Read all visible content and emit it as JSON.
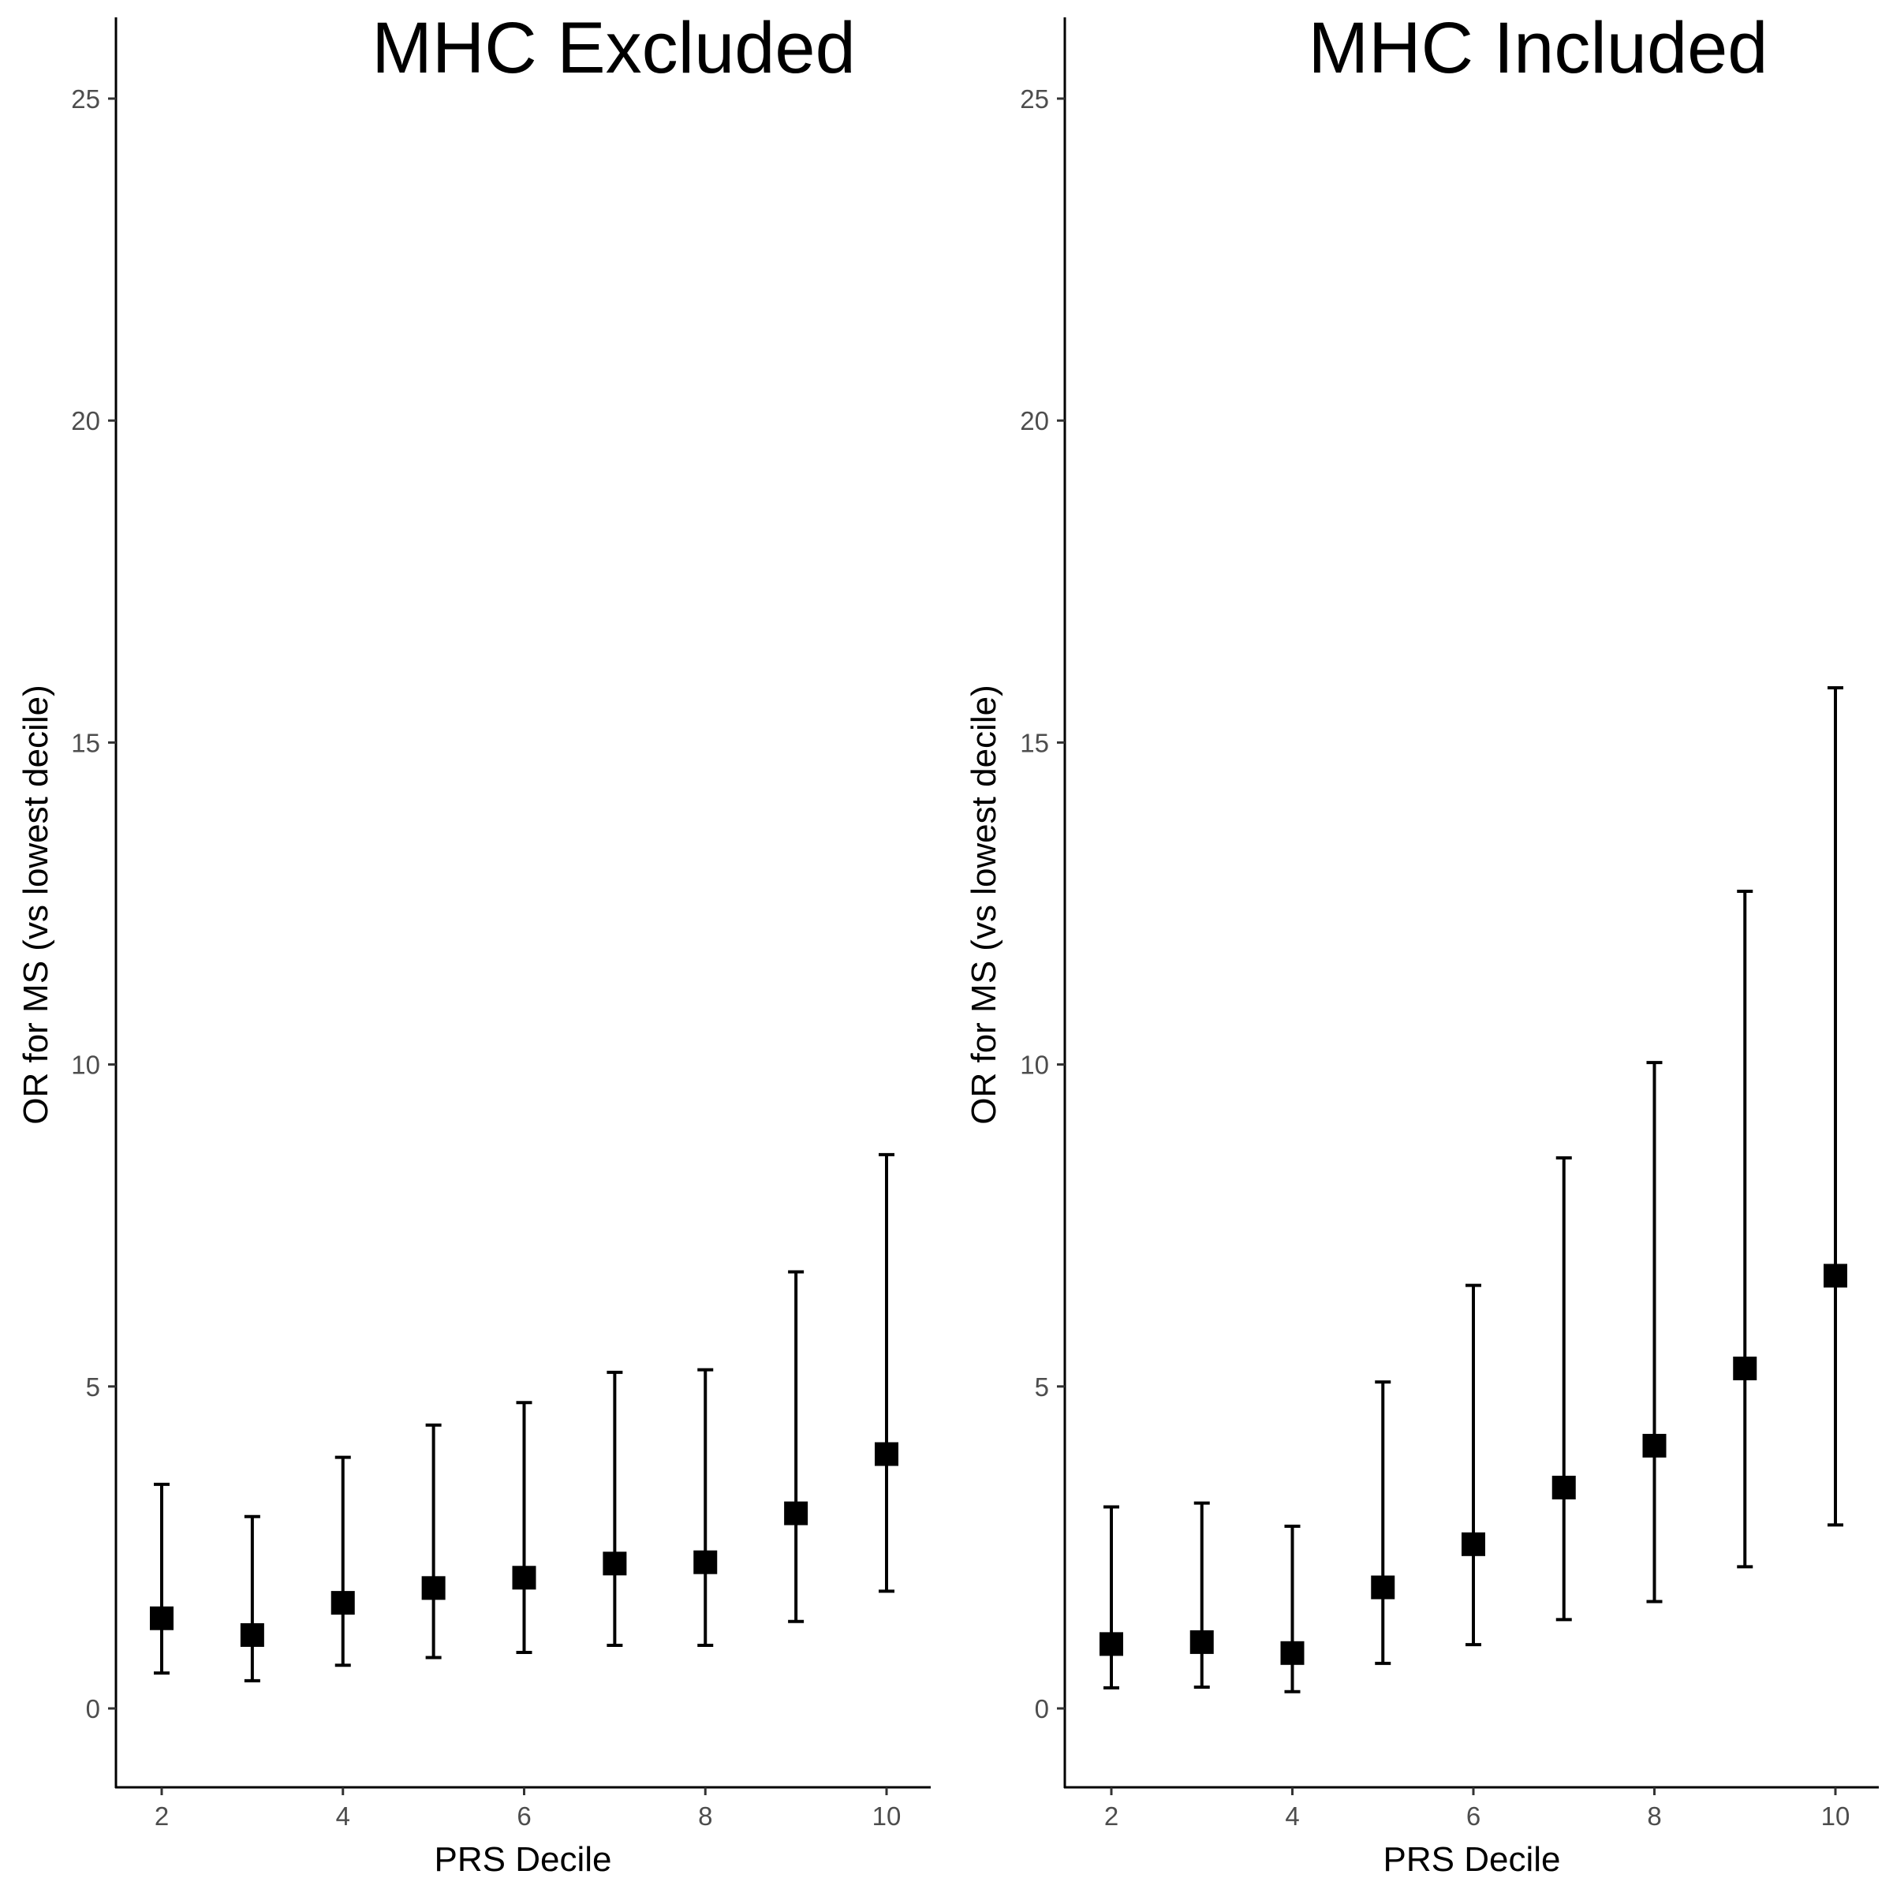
{
  "figure": {
    "background": "#ffffff",
    "point_color": "#000000",
    "errorbar_color": "#000000",
    "axis_color": "#000000"
  },
  "chart_data": [
    {
      "type": "scatter",
      "title": "MHC Excluded",
      "xlabel": "PRS Decile",
      "ylabel": "OR for MS (vs lowest decile)",
      "xlim": [
        1.5,
        10.5
      ],
      "ylim": [
        -1.2,
        26.2
      ],
      "x_ticks": [
        2,
        4,
        6,
        8,
        10
      ],
      "y_ticks": [
        0,
        5,
        10,
        15,
        20,
        25
      ],
      "grid": false,
      "marker": "square",
      "points": [
        {
          "x": 2,
          "y": 1.4,
          "lower": 0.55,
          "upper": 3.48
        },
        {
          "x": 3,
          "y": 1.14,
          "lower": 0.43,
          "upper": 2.98
        },
        {
          "x": 4,
          "y": 1.64,
          "lower": 0.67,
          "upper": 3.9
        },
        {
          "x": 5,
          "y": 1.87,
          "lower": 0.79,
          "upper": 4.4
        },
        {
          "x": 6,
          "y": 2.03,
          "lower": 0.87,
          "upper": 4.75
        },
        {
          "x": 7,
          "y": 2.25,
          "lower": 0.98,
          "upper": 5.22
        },
        {
          "x": 8,
          "y": 2.27,
          "lower": 0.98,
          "upper": 5.26
        },
        {
          "x": 9,
          "y": 3.03,
          "lower": 1.35,
          "upper": 6.78
        },
        {
          "x": 10,
          "y": 3.95,
          "lower": 1.82,
          "upper": 8.6
        }
      ]
    },
    {
      "type": "scatter",
      "title": "MHC Included",
      "xlabel": "PRS Decile",
      "ylabel": "OR for MS (vs lowest decile)",
      "xlim": [
        1.5,
        10.5
      ],
      "ylim": [
        -1.2,
        26.2
      ],
      "x_ticks": [
        2,
        4,
        6,
        8,
        10
      ],
      "y_ticks": [
        0,
        5,
        10,
        15,
        20,
        25
      ],
      "grid": false,
      "marker": "square",
      "points": [
        {
          "x": 2,
          "y": 1.0,
          "lower": 0.32,
          "upper": 3.13
        },
        {
          "x": 3,
          "y": 1.03,
          "lower": 0.33,
          "upper": 3.19
        },
        {
          "x": 4,
          "y": 0.86,
          "lower": 0.26,
          "upper": 2.83
        },
        {
          "x": 5,
          "y": 1.88,
          "lower": 0.7,
          "upper": 5.07
        },
        {
          "x": 6,
          "y": 2.55,
          "lower": 0.99,
          "upper": 6.57
        },
        {
          "x": 7,
          "y": 3.43,
          "lower": 1.38,
          "upper": 8.55
        },
        {
          "x": 8,
          "y": 4.08,
          "lower": 1.66,
          "upper": 10.03
        },
        {
          "x": 9,
          "y": 5.28,
          "lower": 2.2,
          "upper": 12.69
        },
        {
          "x": 10,
          "y": 6.72,
          "lower": 2.85,
          "upper": 15.85
        }
      ]
    }
  ]
}
